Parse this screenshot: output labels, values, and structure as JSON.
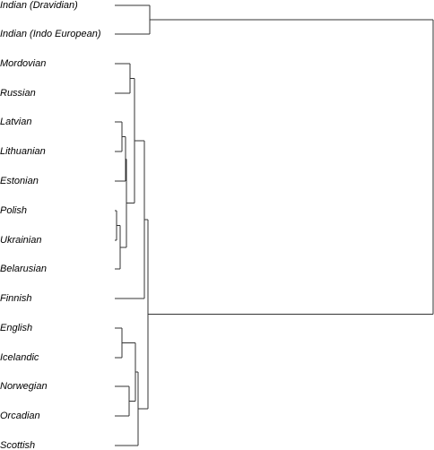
{
  "diagram": {
    "type": "dendrogram",
    "orientation": "left-labels",
    "line_color": "#333333",
    "text_color": "#000000",
    "leaves": [
      "Indian (Dravidian)",
      "Indian (Indo European)",
      "Mordovian",
      "Russian",
      "Latvian",
      "Lithuanian",
      "Estonian",
      "Polish",
      "Ukrainian",
      "Belarusian",
      "Finnish",
      "English",
      "Icelandic",
      "Norwegian",
      "Orcadian",
      "Scottish"
    ]
  }
}
